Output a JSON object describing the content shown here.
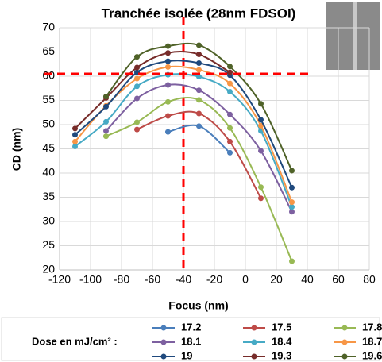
{
  "chart_data": {
    "type": "line",
    "title": "Tranchée isolée (28nm FDSOI)",
    "x_label": "Focus (nm)",
    "y_label": "CD (nm)",
    "legend_title": "Dose en mJ/cm² :",
    "x": [
      -110,
      -90,
      -70,
      -50,
      -30,
      -10,
      10,
      30
    ],
    "xlim": [
      -120,
      80
    ],
    "xticks": [
      -120,
      -100,
      -80,
      -60,
      -40,
      -20,
      0,
      20,
      40,
      60,
      80
    ],
    "ylim": [
      20,
      70
    ],
    "yticks": [
      20,
      25,
      30,
      35,
      40,
      45,
      50,
      55,
      60,
      65,
      70
    ],
    "grid": true,
    "smooth": true,
    "reference_lines": {
      "x": -40,
      "y": 60.5,
      "color": "#ff0000"
    },
    "series": [
      {
        "name": "17.2",
        "color": "#4a7ebb",
        "values": [
          null,
          null,
          null,
          48.5,
          49.7,
          44.2,
          null,
          null
        ]
      },
      {
        "name": "17.5",
        "color": "#be4b48",
        "values": [
          null,
          null,
          49,
          51.8,
          52.3,
          46.5,
          34.8,
          null
        ]
      },
      {
        "name": "17.8",
        "color": "#98b954",
        "values": [
          null,
          47.6,
          50.5,
          54.7,
          55.1,
          49.3,
          37.1,
          21.8
        ]
      },
      {
        "name": "18.1",
        "color": "#7d60a0",
        "values": [
          null,
          48.7,
          55.4,
          58.2,
          57.1,
          52.1,
          44.6,
          32
        ]
      },
      {
        "name": "18.4",
        "color": "#46aac5",
        "values": [
          45.5,
          50.6,
          57.9,
          60.3,
          59.9,
          56.8,
          48.7,
          33
        ]
      },
      {
        "name": "18.7",
        "color": "#f79646",
        "values": [
          46.5,
          53.9,
          59.5,
          61.9,
          61.3,
          58.5,
          49.8,
          34
        ]
      },
      {
        "name": "19",
        "color": "#1f497d",
        "values": [
          47.9,
          53.7,
          60.8,
          63.1,
          62.7,
          60.2,
          51,
          37
        ]
      },
      {
        "name": "19.3",
        "color": "#772c2a",
        "values": [
          49.2,
          55.5,
          61.8,
          64.8,
          64.5,
          60.8,
          null,
          null
        ]
      },
      {
        "name": "19.6",
        "color": "#4f6228",
        "values": [
          null,
          55.8,
          64,
          66.2,
          66.4,
          62,
          54.3,
          40.5
        ]
      }
    ]
  }
}
